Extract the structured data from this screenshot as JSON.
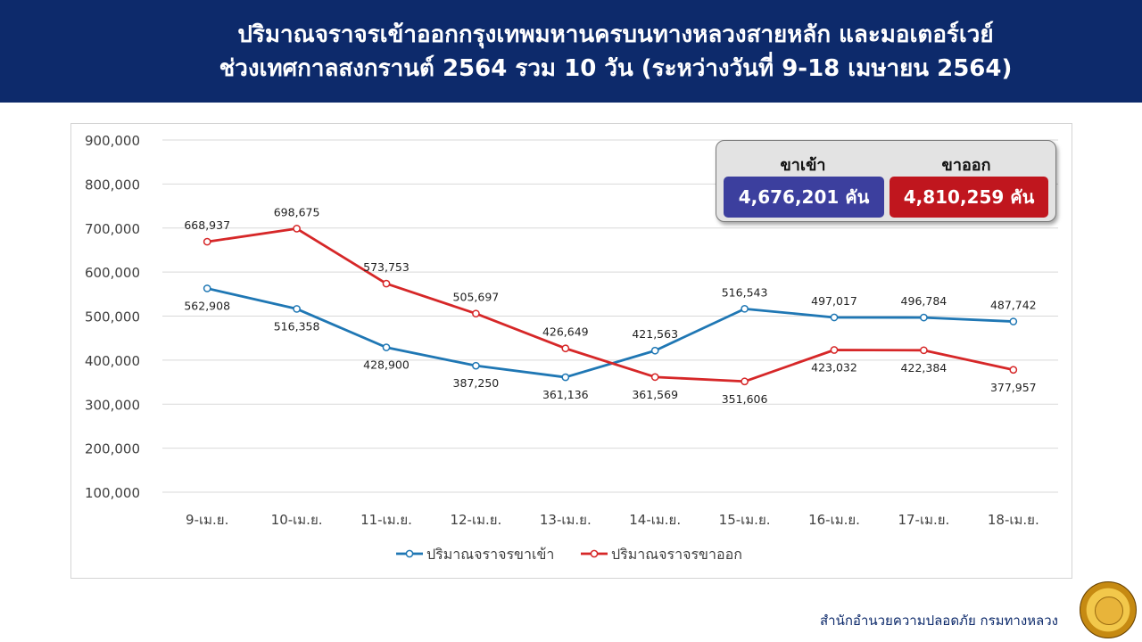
{
  "header": {
    "title_line1": "ปริมาณจราจรเข้าออกกรุงเทพมหานครบนทางหลวงสายหลัก และมอเตอร์เวย์",
    "title_line2": "ช่วงเทศกาลสงกรานต์ 2564 รวม 10 วัน (ระหว่างวันที่ 9-18 เมษายน 2564)"
  },
  "summary": {
    "inbound_label": "ขาเข้า",
    "inbound_value": "4,676,201 คัน",
    "outbound_label": "ขาออก",
    "outbound_value": "4,810,259 คัน"
  },
  "footer": {
    "credit": "สำนักอำนวยความปลอดภัย กรมทางหลวง"
  },
  "colors": {
    "header_bg": "#0d2a6b",
    "inbound": "#1f77b4",
    "outbound": "#d62728",
    "inbound_box": "#3c3f9e",
    "outbound_box": "#c0161e"
  },
  "chart_data": {
    "type": "line",
    "categories": [
      "9-เม.ย.",
      "10-เม.ย.",
      "11-เม.ย.",
      "12-เม.ย.",
      "13-เม.ย.",
      "14-เม.ย.",
      "15-เม.ย.",
      "16-เม.ย.",
      "17-เม.ย.",
      "18-เม.ย."
    ],
    "series": [
      {
        "name": "ปริมาณจราจรขาเข้า",
        "color": "#1f77b4",
        "values": [
          562908,
          516358,
          428900,
          387250,
          361136,
          421563,
          516543,
          497017,
          496784,
          487742
        ],
        "labels": [
          "562,908",
          "516,358",
          "428,900",
          "387,250",
          "361,136",
          "421,563",
          "516,543",
          "497,017",
          "496,784",
          "487,742"
        ]
      },
      {
        "name": "ปริมาณจราจรขาออก",
        "color": "#d62728",
        "values": [
          668937,
          698675,
          573753,
          505697,
          426649,
          361569,
          351606,
          423032,
          422384,
          377957
        ],
        "labels": [
          "668,937",
          "698,675",
          "573,753",
          "505,697",
          "426,649",
          "361,569",
          "351,606",
          "423,032",
          "422,384",
          "377,957"
        ]
      }
    ],
    "ylim": [
      100000,
      900000
    ],
    "yticks": [
      "100,000",
      "200,000",
      "300,000",
      "400,000",
      "500,000",
      "600,000",
      "700,000",
      "800,000",
      "900,000"
    ],
    "grid": true,
    "legend": "bottom-center"
  }
}
